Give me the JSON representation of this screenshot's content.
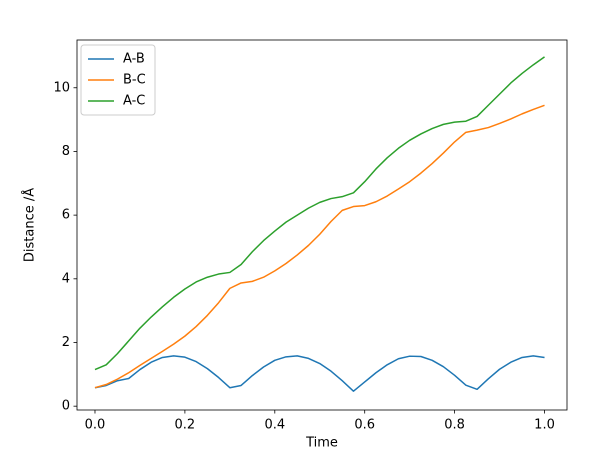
{
  "chart_data": {
    "type": "line",
    "x_label": "Time",
    "y_label": "Distance /Å",
    "x": [
      0,
      0.025,
      0.05,
      0.075,
      0.1,
      0.125,
      0.15,
      0.175,
      0.2,
      0.225,
      0.25,
      0.275,
      0.3,
      0.325,
      0.35,
      0.375,
      0.4,
      0.425,
      0.45,
      0.475,
      0.5,
      0.525,
      0.55,
      0.575,
      0.6,
      0.625,
      0.65,
      0.675,
      0.7,
      0.725,
      0.75,
      0.775,
      0.8,
      0.825,
      0.85,
      0.875,
      0.9,
      0.925,
      0.95,
      0.975,
      1.0
    ],
    "series": [
      {
        "name": "A-B",
        "color": "#1f77b4",
        "values": [
          0.58,
          0.65,
          0.8,
          0.87,
          1.15,
          1.38,
          1.53,
          1.58,
          1.54,
          1.4,
          1.18,
          0.9,
          0.58,
          0.65,
          0.96,
          1.23,
          1.44,
          1.55,
          1.58,
          1.5,
          1.34,
          1.1,
          0.8,
          0.47,
          0.76,
          1.05,
          1.3,
          1.49,
          1.57,
          1.56,
          1.44,
          1.24,
          0.97,
          0.66,
          0.53,
          0.86,
          1.16,
          1.38,
          1.53,
          1.58,
          1.53
        ]
      },
      {
        "name": "B-C",
        "color": "#ff7f0e",
        "values": [
          0.58,
          0.68,
          0.85,
          1.05,
          1.28,
          1.5,
          1.72,
          1.95,
          2.2,
          2.5,
          2.85,
          3.25,
          3.7,
          3.87,
          3.92,
          4.05,
          4.25,
          4.48,
          4.75,
          5.05,
          5.4,
          5.8,
          6.15,
          6.27,
          6.3,
          6.42,
          6.6,
          6.82,
          7.05,
          7.32,
          7.62,
          7.95,
          8.3,
          8.6,
          8.67,
          8.75,
          8.88,
          9.02,
          9.18,
          9.32,
          9.45
        ]
      },
      {
        "name": "A-C",
        "color": "#2ca02c",
        "values": [
          1.15,
          1.3,
          1.65,
          2.05,
          2.45,
          2.8,
          3.12,
          3.42,
          3.68,
          3.9,
          4.05,
          4.15,
          4.2,
          4.45,
          4.85,
          5.2,
          5.5,
          5.78,
          6.0,
          6.22,
          6.4,
          6.52,
          6.58,
          6.7,
          7.05,
          7.45,
          7.8,
          8.1,
          8.35,
          8.55,
          8.72,
          8.85,
          8.92,
          8.95,
          9.1,
          9.45,
          9.8,
          10.15,
          10.45,
          10.72,
          10.97
        ]
      }
    ],
    "xlim": [
      -0.04,
      1.05
    ],
    "xticks": [
      {
        "value": 0,
        "label": "0.0"
      },
      0.2,
      0.4,
      0.6,
      0.8,
      {
        "value": 1,
        "label": "1.0"
      }
    ],
    "ylim": [
      -0.12,
      11.5
    ],
    "yticks": [
      0,
      2,
      4,
      6,
      8,
      10
    ],
    "legend": "upper left"
  }
}
